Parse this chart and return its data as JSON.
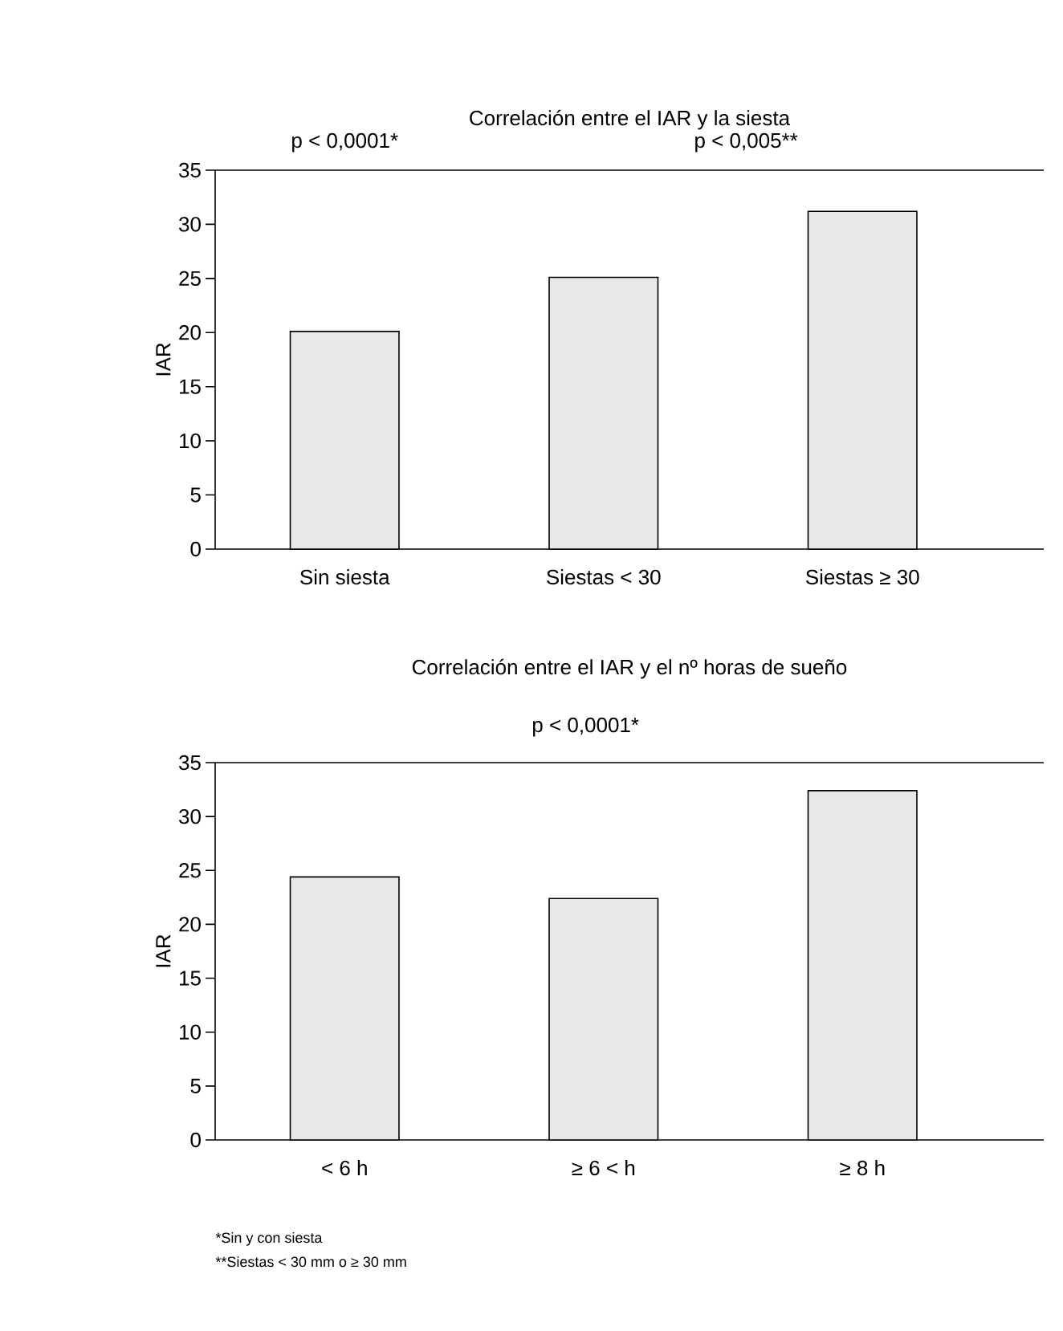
{
  "chart_data": [
    {
      "type": "bar",
      "title": "Correlación entre el IAR y la siesta",
      "ylabel": "IAR",
      "categories": [
        "Sin siesta",
        "Siestas < 30",
        "Siestas ≥ 30"
      ],
      "values": [
        20.1,
        25.1,
        31.2
      ],
      "color": "#e9e8e6",
      "ylim": [
        0,
        35
      ],
      "yticks": [
        0,
        5,
        10,
        15,
        20,
        25,
        30,
        35
      ],
      "grid": false,
      "annotations": [
        "p < 0,0001*",
        "p < 0,005**"
      ]
    },
    {
      "type": "bar",
      "title": "Correlación entre el IAR y el nº horas de sueño",
      "ylabel": "IAR",
      "categories": [
        "< 6 h",
        "≥ 6 < h",
        "≥ 8 h"
      ],
      "values": [
        24.4,
        22.4,
        32.4
      ],
      "color": "#e9e8e6",
      "ylim": [
        0,
        35
      ],
      "yticks": [
        0,
        5,
        10,
        15,
        20,
        25,
        30,
        35
      ],
      "grid": false,
      "annotations": [
        "p < 0,0001*",
        "*Sin y con siesta",
        "**Siestas < 30 mm o ≥ 30 mm"
      ]
    }
  ]
}
